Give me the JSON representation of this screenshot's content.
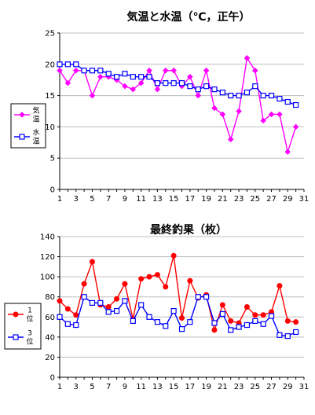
{
  "chart_data": [
    {
      "type": "line",
      "title": "気温と水温（℃，正午）",
      "xlabel": "",
      "ylabel": "",
      "x": [
        1,
        2,
        3,
        4,
        5,
        6,
        7,
        8,
        9,
        10,
        11,
        12,
        13,
        14,
        15,
        16,
        17,
        18,
        19,
        20,
        21,
        22,
        23,
        24,
        25,
        26,
        27,
        28,
        29,
        30
      ],
      "xlim": [
        1,
        31
      ],
      "ylim": [
        0,
        25
      ],
      "yticks": [
        0,
        5,
        10,
        15,
        20,
        25
      ],
      "xticks": [
        1,
        3,
        5,
        7,
        9,
        11,
        13,
        15,
        17,
        19,
        21,
        23,
        25,
        27,
        29,
        31
      ],
      "grid": "horizontal",
      "legend_position": "left",
      "series": [
        {
          "name": "気温",
          "color": "#ff00ff",
          "marker": "diamond",
          "values": [
            19,
            17,
            19,
            19,
            15,
            18,
            18,
            17.5,
            16.5,
            16,
            17,
            19,
            16,
            19,
            19,
            16.5,
            18,
            15,
            19,
            13,
            12,
            8,
            12.5,
            21,
            19,
            11,
            12,
            12,
            6,
            10
          ]
        },
        {
          "name": "水温",
          "color": "#0000ff",
          "marker": "square-open",
          "values": [
            20,
            20,
            20,
            19,
            19,
            19,
            18.5,
            18,
            18.5,
            18,
            18,
            18,
            17,
            17,
            17,
            17,
            16.5,
            16,
            16.5,
            16,
            15.5,
            15,
            15,
            15.5,
            16.5,
            15,
            15,
            14.5,
            14,
            13.5
          ]
        }
      ]
    },
    {
      "type": "line",
      "title": "最終釣果（枚）",
      "xlabel": "",
      "ylabel": "",
      "x": [
        1,
        2,
        3,
        4,
        5,
        6,
        7,
        8,
        9,
        10,
        11,
        12,
        13,
        14,
        15,
        16,
        17,
        18,
        19,
        20,
        21,
        22,
        23,
        24,
        25,
        26,
        27,
        28,
        29,
        30
      ],
      "xlim": [
        1,
        31
      ],
      "ylim": [
        0,
        140
      ],
      "yticks": [
        0,
        20,
        40,
        60,
        80,
        100,
        120,
        140
      ],
      "xticks": [
        1,
        3,
        5,
        7,
        9,
        11,
        13,
        15,
        17,
        19,
        21,
        23,
        25,
        27,
        29,
        31
      ],
      "grid": "horizontal",
      "legend_position": "left",
      "series": [
        {
          "name": "1位",
          "color": "#ff0000",
          "marker": "circle",
          "values": [
            76,
            68,
            62,
            93,
            115,
            72,
            70,
            78,
            93,
            58,
            98,
            100,
            102,
            90,
            121,
            59,
            96,
            79,
            82,
            47,
            72,
            56,
            54,
            70,
            62,
            62,
            65,
            91,
            56,
            55
          ]
        },
        {
          "name": "3位",
          "color": "#0000ff",
          "marker": "square-open",
          "values": [
            60,
            53,
            52,
            80,
            74,
            74,
            65,
            66,
            76,
            56,
            72,
            60,
            55,
            51,
            66,
            48,
            55,
            80,
            80,
            54,
            63,
            47,
            50,
            52,
            56,
            53,
            61,
            42,
            41,
            45
          ]
        }
      ]
    }
  ]
}
